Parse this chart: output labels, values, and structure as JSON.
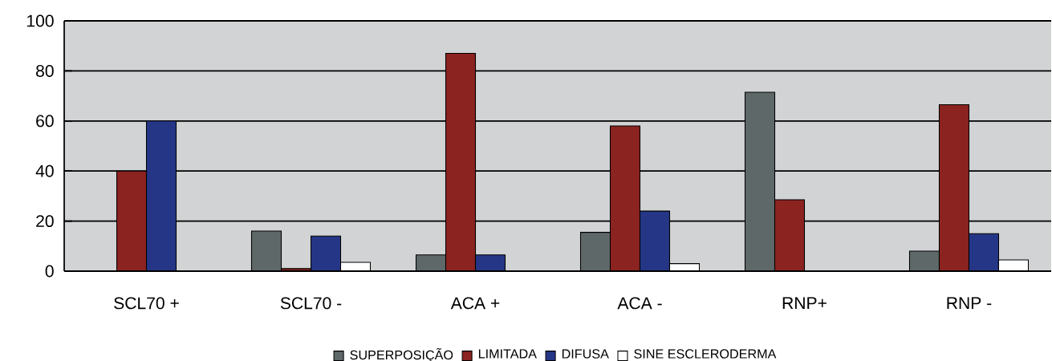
{
  "chart_data": {
    "type": "bar",
    "categories": [
      "SCL70 +",
      "SCL70 -",
      "ACA +",
      "ACA -",
      "RNP+",
      "RNP -"
    ],
    "series": [
      {
        "name": "SUPERPOSIÇÃO",
        "color": "#5f6869",
        "values": [
          null,
          16,
          6.5,
          15.5,
          71.5,
          8
        ]
      },
      {
        "name": "LIMITADA",
        "color": "#8b2320",
        "values": [
          40,
          1,
          87,
          58,
          28.5,
          66.5
        ]
      },
      {
        "name": "DIFUSA",
        "color": "#263686",
        "values": [
          60,
          14,
          6.5,
          24,
          null,
          15
        ]
      },
      {
        "name": "SINE ESCLERODERMA",
        "color": "#ffffff",
        "values": [
          null,
          3.5,
          null,
          3,
          null,
          4.5
        ]
      }
    ],
    "ylim": [
      0,
      100
    ],
    "yticks": [
      0,
      20,
      40,
      60,
      80,
      100
    ],
    "grid": "y",
    "legend": "bottom"
  }
}
